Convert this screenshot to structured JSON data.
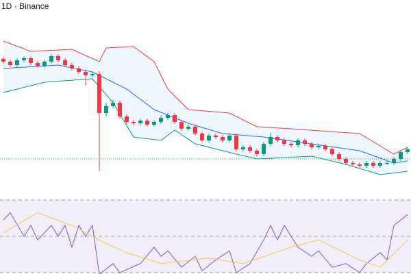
{
  "header": {
    "title": "1D · Binance"
  },
  "chart_data": [
    {
      "type": "candlestick",
      "ylim": [
        10,
        300
      ],
      "up_color": "#089981",
      "down_color": "#f23645",
      "open": [
        214,
        210,
        205,
        212,
        215,
        208,
        204,
        210,
        218,
        212,
        205,
        200,
        195,
        190,
        192,
        135,
        145,
        150,
        130,
        122,
        120,
        124,
        118,
        122,
        128,
        132,
        122,
        112,
        115,
        105,
        95,
        102,
        100,
        95,
        102,
        82,
        85,
        80,
        75,
        90,
        100,
        95,
        90,
        88,
        95,
        90,
        85,
        87,
        82,
        75,
        68,
        62,
        60,
        58,
        62,
        58,
        62,
        62,
        68,
        78
      ],
      "high": [
        217,
        213,
        215,
        218,
        218,
        211,
        213,
        221,
        221,
        215,
        208,
        203,
        198,
        195,
        196,
        150,
        154,
        153,
        133,
        125,
        127,
        127,
        125,
        131,
        135,
        135,
        125,
        118,
        118,
        108,
        105,
        105,
        103,
        105,
        105,
        88,
        88,
        83,
        93,
        106,
        103,
        98,
        93,
        98,
        98,
        93,
        90,
        90,
        85,
        78,
        71,
        65,
        63,
        65,
        65,
        65,
        65,
        71,
        81,
        85
      ],
      "low": [
        207,
        202,
        202,
        209,
        205,
        201,
        201,
        207,
        209,
        202,
        197,
        192,
        175,
        187,
        50,
        130,
        142,
        127,
        119,
        117,
        117,
        115,
        115,
        119,
        125,
        119,
        109,
        109,
        102,
        92,
        92,
        97,
        92,
        92,
        79,
        79,
        77,
        72,
        72,
        87,
        92,
        87,
        85,
        85,
        87,
        82,
        82,
        79,
        72,
        65,
        59,
        57,
        55,
        55,
        55,
        55,
        59,
        59,
        65,
        75
      ],
      "close": [
        210,
        205,
        212,
        215,
        208,
        204,
        210,
        218,
        212,
        205,
        200,
        195,
        190,
        192,
        135,
        145,
        150,
        130,
        122,
        120,
        124,
        118,
        122,
        128,
        132,
        122,
        112,
        115,
        105,
        95,
        102,
        100,
        95,
        102,
        82,
        85,
        80,
        75,
        90,
        100,
        95,
        90,
        88,
        95,
        90,
        85,
        87,
        82,
        75,
        68,
        62,
        60,
        58,
        62,
        58,
        62,
        62,
        68,
        78,
        82
      ],
      "price_line": 68,
      "price_line_color": "#089981",
      "bands": [
        {
          "color": "#f23645",
          "x": [
            0,
            4,
            10,
            14,
            15,
            19,
            22,
            24,
            27,
            33,
            37,
            42,
            52,
            57,
            59
          ],
          "values": [
            240,
            225,
            228,
            210,
            230,
            232,
            210,
            170,
            140,
            135,
            115,
            112,
            105,
            75,
            85
          ]
        },
        {
          "color": "#2962ff",
          "x": [
            0,
            8,
            13,
            18,
            22,
            27,
            32,
            38,
            45,
            52,
            57,
            59
          ],
          "values": [
            200,
            205,
            195,
            170,
            140,
            120,
            105,
            100,
            90,
            80,
            62,
            65
          ]
        },
        {
          "color": "#089981",
          "x": [
            0,
            6,
            13,
            16,
            19,
            23,
            25,
            28,
            34,
            37,
            45,
            50,
            55,
            59
          ],
          "values": [
            165,
            180,
            185,
            150,
            100,
            95,
            110,
            90,
            75,
            68,
            72,
            60,
            45,
            50
          ]
        }
      ],
      "band_fill": "#2196f3"
    },
    {
      "type": "line",
      "ylim": [
        30,
        70
      ],
      "levels": [
        70,
        50,
        30
      ],
      "series": [
        {
          "color": "#7e57c2",
          "x": [
            0,
            1,
            3,
            4,
            5,
            7,
            8,
            9,
            10,
            11,
            12,
            13,
            14,
            16,
            17,
            20,
            22,
            23,
            24,
            26,
            28,
            29,
            31,
            33,
            34,
            36,
            38,
            39,
            40,
            41,
            43,
            45,
            46,
            48,
            50,
            52,
            53,
            55,
            56,
            57,
            58,
            59
          ],
          "values": [
            59,
            63,
            50,
            56,
            48,
            56,
            50,
            56,
            44,
            56,
            50,
            56,
            29,
            35,
            30,
            35,
            44,
            39,
            42,
            33,
            39,
            31,
            37,
            42,
            30,
            35,
            48,
            56,
            48,
            56,
            44,
            39,
            42,
            33,
            35,
            30,
            35,
            41,
            37,
            56,
            59,
            62
          ]
        },
        {
          "color": "#f7c744",
          "x": [
            0,
            5,
            10,
            15,
            18,
            23,
            30,
            35,
            42,
            46,
            52,
            55,
            59
          ],
          "values": [
            52,
            63,
            56,
            46,
            41,
            35,
            38,
            35,
            44,
            48,
            37,
            33,
            48
          ]
        }
      ]
    }
  ]
}
